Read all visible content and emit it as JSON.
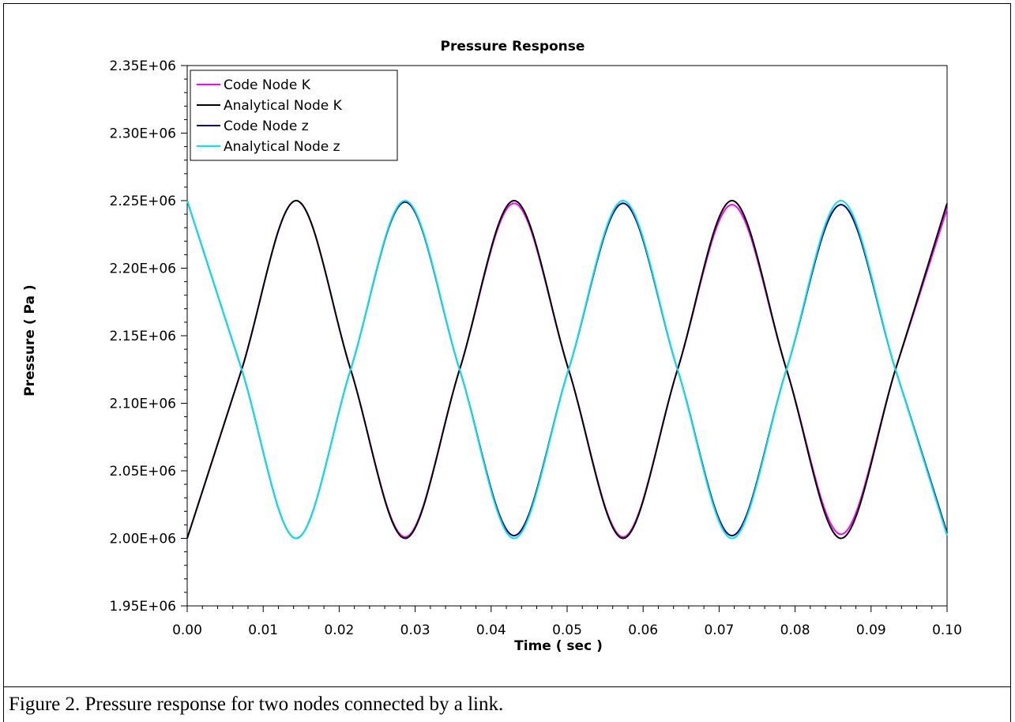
{
  "caption": "Figure 2.  Pressure response for two nodes connected by a link.",
  "chart_data": {
    "type": "line",
    "title": "Pressure Response",
    "xlabel": "Time ( sec )",
    "ylabel": "Pressure ( Pa )",
    "xlim": [
      0,
      0.1
    ],
    "ylim": [
      1950000,
      2350000
    ],
    "x_ticks": [
      "0.00",
      "0.01",
      "0.02",
      "0.03",
      "0.04",
      "0.05",
      "0.06",
      "0.07",
      "0.08",
      "0.09",
      "0.10"
    ],
    "y_ticks": [
      "1.95E+06",
      "2.00E+06",
      "2.05E+06",
      "2.10E+06",
      "2.15E+06",
      "2.20E+06",
      "2.25E+06",
      "2.30E+06",
      "2.35E+06"
    ],
    "grid": false,
    "legend_position": "top-left",
    "series": [
      {
        "name": "Code Node K",
        "color": "#ff00ff",
        "x": [
          0.0,
          0.00717,
          0.01434,
          0.02151,
          0.02868,
          0.03585,
          0.04302,
          0.05019,
          0.05736,
          0.06453,
          0.0717,
          0.07887,
          0.08604,
          0.09321,
          0.1
        ],
        "y": [
          2000000,
          2125000,
          2250000,
          2125000,
          2001000,
          2125000,
          2248000,
          2125000,
          2001000,
          2125000,
          2247000,
          2125000,
          2003000,
          2125000,
          2244000
        ]
      },
      {
        "name": "Analytical Node K",
        "color": "#000000",
        "x": [
          0.0,
          0.00717,
          0.01434,
          0.02151,
          0.02868,
          0.03585,
          0.04302,
          0.05019,
          0.05736,
          0.06453,
          0.0717,
          0.07887,
          0.08604,
          0.09321,
          0.1
        ],
        "y": [
          2000000,
          2125000,
          2250000,
          2125000,
          2000000,
          2125000,
          2250000,
          2125000,
          2000000,
          2125000,
          2250000,
          2125000,
          2000000,
          2125000,
          2248000
        ]
      },
      {
        "name": "Code Node z",
        "color": "#000080",
        "x": [
          0.0,
          0.00717,
          0.01434,
          0.02151,
          0.02868,
          0.03585,
          0.04302,
          0.05019,
          0.05736,
          0.06453,
          0.0717,
          0.07887,
          0.08604,
          0.09321,
          0.1
        ],
        "y": [
          2250000,
          2125000,
          2000000,
          2125000,
          2249000,
          2125000,
          2002000,
          2125000,
          2248000,
          2125000,
          2002000,
          2125000,
          2247000,
          2125000,
          2004000
        ]
      },
      {
        "name": "Analytical Node z",
        "color": "#00e5ee",
        "x": [
          0.0,
          0.00717,
          0.01434,
          0.02151,
          0.02868,
          0.03585,
          0.04302,
          0.05019,
          0.05736,
          0.06453,
          0.0717,
          0.07887,
          0.08604,
          0.09321,
          0.1
        ],
        "y": [
          2250000,
          2125000,
          2000000,
          2125000,
          2250000,
          2125000,
          2000000,
          2125000,
          2250000,
          2125000,
          2000000,
          2125000,
          2250000,
          2125000,
          2002000
        ]
      }
    ]
  }
}
